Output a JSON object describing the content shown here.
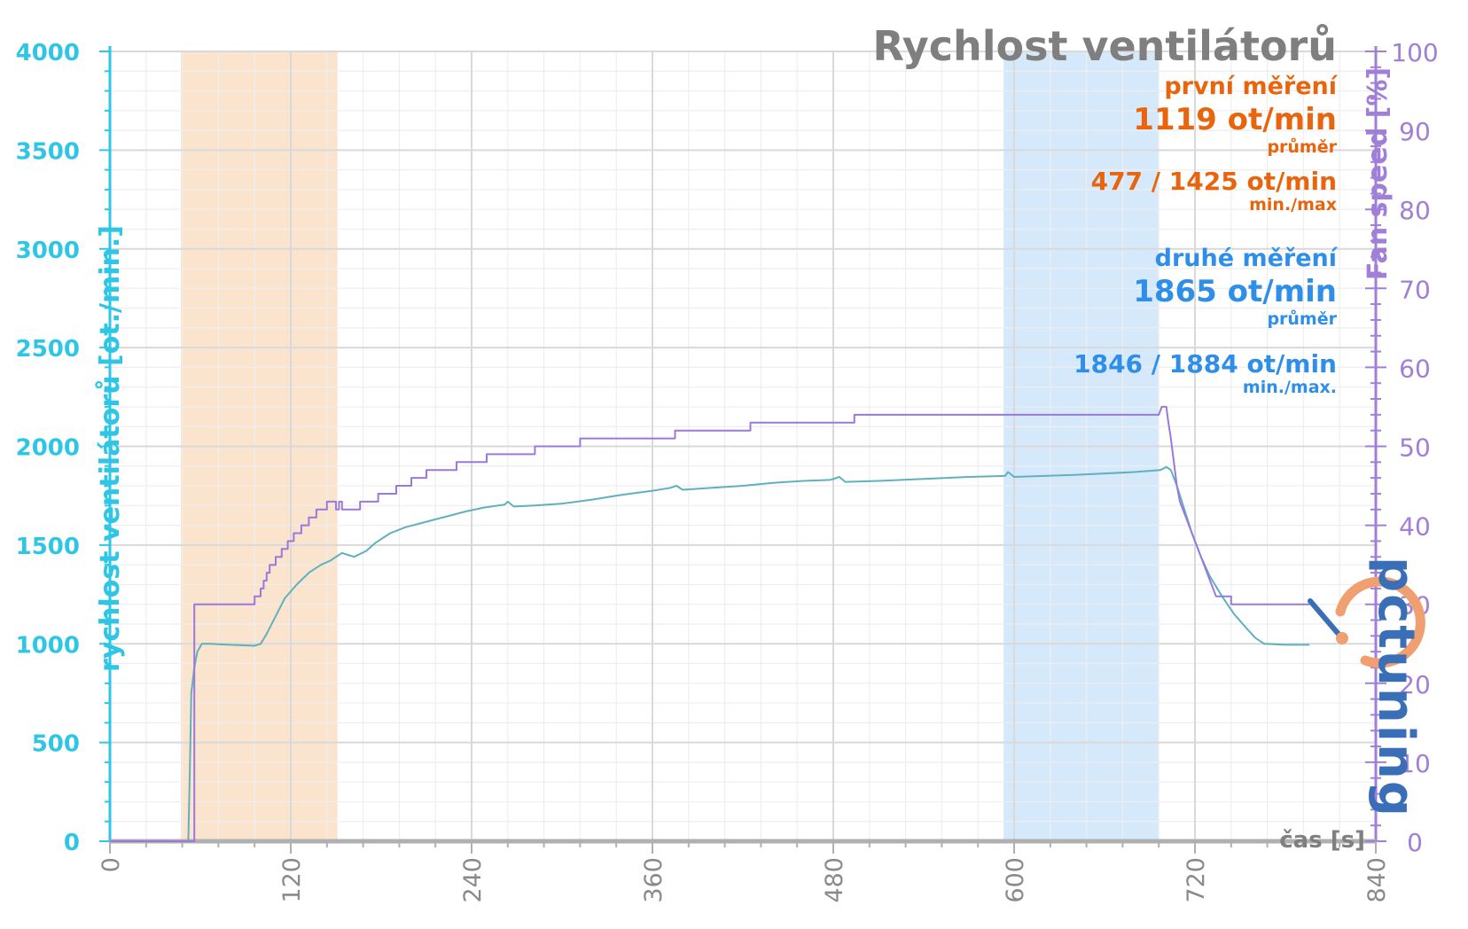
{
  "title": "Rychlost ventilátorů",
  "y_left_label": "rychlost ventilátorů [ot./min.]",
  "y_right_label": "Fan speed [%]",
  "x_label": "čas [s]",
  "colors": {
    "left_axis": "#2fc6e6",
    "right_axis": "#a07fd8",
    "rpm_line": "#5fb1bd",
    "pct_line": "#9a78dc",
    "orange": "#e8650e",
    "blue": "#2f8fe8",
    "band_orange": "#fbe1c8",
    "band_blue": "#d2e7fb",
    "title": "#7f7f7f",
    "grid_major": "#d9d9d9",
    "grid_minor": "#eeeeee"
  },
  "legend": {
    "first": {
      "heading": "první měření",
      "avg": "1119 ot/min",
      "avg_caption": "průměr",
      "range": "477 / 1425 ot/min",
      "range_caption": "min./max"
    },
    "second": {
      "heading": "druhé měření",
      "avg": "1865 ot/min",
      "avg_caption": "průměr",
      "range": "1846 / 1884 ot/min",
      "range_caption": "min./max."
    }
  },
  "logo": {
    "text": "pctuning",
    "icon": "speedometer-icon"
  },
  "chart_data": {
    "type": "line",
    "x_range": [
      0,
      840
    ],
    "y_left_range": [
      0,
      4000
    ],
    "y_right_range": [
      0,
      100
    ],
    "x_ticks": [
      0,
      120,
      240,
      360,
      480,
      600,
      720,
      840
    ],
    "y_left_ticks": [
      0,
      500,
      1000,
      1500,
      2000,
      2500,
      3000,
      3500,
      4000
    ],
    "y_right_ticks": [
      0,
      10,
      20,
      30,
      40,
      50,
      60,
      70,
      80,
      90,
      100
    ],
    "grid": true,
    "bands": [
      {
        "name": "první měření",
        "x_start": 47,
        "x_end": 151,
        "color_key": "band_orange"
      },
      {
        "name": "druhé měření",
        "x_start": 593,
        "x_end": 696,
        "color_key": "band_blue"
      }
    ],
    "series": [
      {
        "name": "",
        "axis": "left",
        "points": [
          [
            0,
            0
          ],
          [
            52,
            0
          ],
          [
            53,
            350
          ],
          [
            54,
            750
          ],
          [
            56,
            880
          ],
          [
            58,
            960
          ],
          [
            61,
            1000
          ],
          [
            66,
            1000
          ],
          [
            96,
            990
          ],
          [
            100,
            1000
          ],
          [
            104,
            1050
          ],
          [
            110,
            1140
          ],
          [
            116,
            1230
          ],
          [
            124,
            1300
          ],
          [
            132,
            1360
          ],
          [
            140,
            1400
          ],
          [
            146,
            1420
          ],
          [
            150,
            1440
          ],
          [
            154,
            1460
          ],
          [
            158,
            1450
          ],
          [
            162,
            1440
          ],
          [
            170,
            1470
          ],
          [
            176,
            1510
          ],
          [
            186,
            1560
          ],
          [
            196,
            1590
          ],
          [
            206,
            1610
          ],
          [
            216,
            1630
          ],
          [
            226,
            1650
          ],
          [
            236,
            1670
          ],
          [
            248,
            1690
          ],
          [
            262,
            1705
          ],
          [
            264,
            1720
          ],
          [
            268,
            1695
          ],
          [
            282,
            1700
          ],
          [
            300,
            1710
          ],
          [
            320,
            1730
          ],
          [
            340,
            1755
          ],
          [
            360,
            1775
          ],
          [
            372,
            1790
          ],
          [
            376,
            1800
          ],
          [
            380,
            1780
          ],
          [
            400,
            1790
          ],
          [
            420,
            1800
          ],
          [
            440,
            1815
          ],
          [
            460,
            1825
          ],
          [
            478,
            1830
          ],
          [
            484,
            1845
          ],
          [
            488,
            1820
          ],
          [
            510,
            1825
          ],
          [
            540,
            1835
          ],
          [
            570,
            1845
          ],
          [
            594,
            1850
          ],
          [
            596,
            1870
          ],
          [
            600,
            1845
          ],
          [
            640,
            1855
          ],
          [
            680,
            1870
          ],
          [
            697,
            1880
          ],
          [
            701,
            1895
          ],
          [
            704,
            1880
          ],
          [
            708,
            1800
          ],
          [
            713,
            1680
          ],
          [
            718,
            1560
          ],
          [
            724,
            1440
          ],
          [
            730,
            1340
          ],
          [
            738,
            1240
          ],
          [
            746,
            1150
          ],
          [
            754,
            1080
          ],
          [
            760,
            1030
          ],
          [
            766,
            1000
          ],
          [
            780,
            995
          ],
          [
            796,
            995
          ]
        ]
      },
      {
        "name": "",
        "axis": "right",
        "points": [
          [
            0,
            0
          ],
          [
            56,
            0
          ],
          [
            56,
            30
          ],
          [
            96,
            30
          ],
          [
            96,
            31
          ],
          [
            100,
            31
          ],
          [
            100,
            32
          ],
          [
            102,
            32
          ],
          [
            102,
            33
          ],
          [
            104,
            33
          ],
          [
            104,
            34
          ],
          [
            106,
            34
          ],
          [
            106,
            35
          ],
          [
            110,
            35
          ],
          [
            110,
            36
          ],
          [
            114,
            36
          ],
          [
            114,
            37
          ],
          [
            118,
            37
          ],
          [
            118,
            38
          ],
          [
            122,
            38
          ],
          [
            122,
            39
          ],
          [
            127,
            39
          ],
          [
            127,
            40
          ],
          [
            132,
            40
          ],
          [
            132,
            41
          ],
          [
            137,
            41
          ],
          [
            137,
            42
          ],
          [
            144,
            42
          ],
          [
            144,
            43
          ],
          [
            150,
            43
          ],
          [
            150,
            42
          ],
          [
            152,
            42
          ],
          [
            152,
            43
          ],
          [
            154,
            43
          ],
          [
            154,
            42
          ],
          [
            166,
            42
          ],
          [
            166,
            43
          ],
          [
            178,
            43
          ],
          [
            178,
            44
          ],
          [
            190,
            44
          ],
          [
            190,
            45
          ],
          [
            200,
            45
          ],
          [
            200,
            46
          ],
          [
            210,
            46
          ],
          [
            210,
            47
          ],
          [
            230,
            47
          ],
          [
            230,
            48
          ],
          [
            250,
            48
          ],
          [
            250,
            49
          ],
          [
            282,
            49
          ],
          [
            282,
            50
          ],
          [
            312,
            50
          ],
          [
            312,
            51
          ],
          [
            375,
            51
          ],
          [
            375,
            52
          ],
          [
            425,
            52
          ],
          [
            425,
            53
          ],
          [
            494,
            53
          ],
          [
            494,
            54
          ],
          [
            696,
            54
          ],
          [
            698,
            55
          ],
          [
            701,
            55
          ],
          [
            702,
            53.5
          ],
          [
            704,
            51
          ],
          [
            706,
            48
          ],
          [
            708,
            45
          ],
          [
            710,
            43
          ],
          [
            712,
            42
          ],
          [
            714,
            41
          ],
          [
            716,
            40
          ],
          [
            718,
            39
          ],
          [
            720,
            38
          ],
          [
            722,
            37
          ],
          [
            724,
            36
          ],
          [
            726,
            35
          ],
          [
            728,
            34
          ],
          [
            730,
            33
          ],
          [
            732,
            32
          ],
          [
            734,
            31
          ],
          [
            744,
            31
          ],
          [
            744,
            30
          ],
          [
            796,
            30
          ]
        ]
      }
    ]
  }
}
